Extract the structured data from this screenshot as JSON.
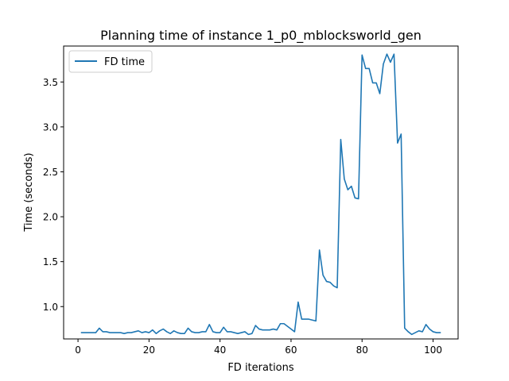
{
  "chart_data": {
    "type": "line",
    "title": "Planning time of instance 1_p0_mblocksworld_gen",
    "xlabel": "FD iterations",
    "ylabel": "Time (seconds)",
    "xlim": [
      -4.05,
      107.05
    ],
    "ylim": [
      0.64,
      3.9
    ],
    "xticks": [
      0,
      20,
      40,
      60,
      80,
      100
    ],
    "xtick_labels": [
      "0",
      "20",
      "40",
      "60",
      "80",
      "100"
    ],
    "yticks": [
      1.0,
      1.5,
      2.0,
      2.5,
      3.0,
      3.5
    ],
    "ytick_labels": [
      "1.0",
      "1.5",
      "2.0",
      "2.5",
      "3.0",
      "3.5"
    ],
    "grid": false,
    "legend_position": "upper left",
    "series": [
      {
        "name": "FD time",
        "color": "#1f77b4",
        "x": [
          1,
          2,
          3,
          4,
          5,
          6,
          7,
          8,
          9,
          10,
          11,
          12,
          13,
          14,
          15,
          16,
          17,
          18,
          19,
          20,
          21,
          22,
          23,
          24,
          25,
          26,
          27,
          28,
          29,
          30,
          31,
          32,
          33,
          34,
          35,
          36,
          37,
          38,
          39,
          40,
          41,
          42,
          43,
          44,
          45,
          46,
          47,
          48,
          49,
          50,
          51,
          52,
          53,
          54,
          55,
          56,
          57,
          58,
          59,
          60,
          61,
          62,
          63,
          64,
          65,
          66,
          67,
          68,
          69,
          70,
          71,
          72,
          73,
          74,
          75,
          76,
          77,
          78,
          79,
          80,
          81,
          82,
          83,
          84,
          85,
          86,
          87,
          88,
          89,
          90,
          91,
          92,
          93,
          94,
          95,
          96,
          97,
          98,
          99,
          100,
          101,
          102
        ],
        "y": [
          0.71,
          0.71,
          0.71,
          0.71,
          0.71,
          0.76,
          0.72,
          0.72,
          0.71,
          0.71,
          0.71,
          0.71,
          0.7,
          0.71,
          0.71,
          0.72,
          0.73,
          0.71,
          0.72,
          0.71,
          0.74,
          0.7,
          0.73,
          0.75,
          0.72,
          0.7,
          0.73,
          0.71,
          0.7,
          0.7,
          0.76,
          0.72,
          0.71,
          0.71,
          0.72,
          0.72,
          0.8,
          0.72,
          0.71,
          0.71,
          0.77,
          0.72,
          0.72,
          0.71,
          0.7,
          0.71,
          0.72,
          0.69,
          0.7,
          0.79,
          0.75,
          0.74,
          0.74,
          0.74,
          0.75,
          0.74,
          0.81,
          0.81,
          0.78,
          0.75,
          0.72,
          1.05,
          0.86,
          0.86,
          0.86,
          0.85,
          0.84,
          1.63,
          1.35,
          1.28,
          1.27,
          1.23,
          1.21,
          2.86,
          2.42,
          2.3,
          2.34,
          2.21,
          2.2,
          3.8,
          3.65,
          3.65,
          3.49,
          3.49,
          3.37,
          3.7,
          3.81,
          3.72,
          3.81,
          2.82,
          2.92,
          0.76,
          0.72,
          0.69,
          0.71,
          0.73,
          0.72,
          0.8,
          0.75,
          0.72,
          0.71,
          0.71
        ]
      }
    ]
  }
}
